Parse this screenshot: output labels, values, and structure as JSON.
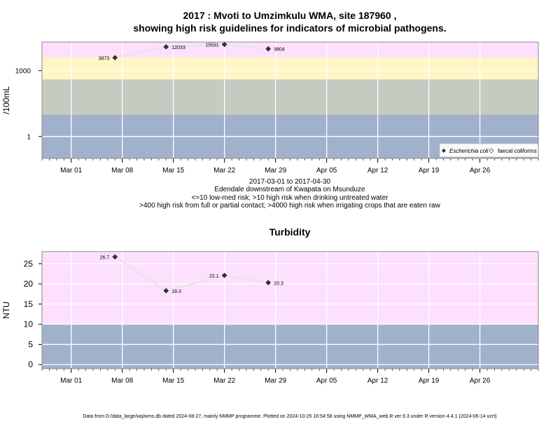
{
  "title_line1": "2017 : Mvoti to Umzimkulu WMA, site 187960 ,",
  "title_line2": "showing high risk guidelines for indicators of microbial pathogens.",
  "subtitle_lines": [
    "2017-03-01 to 2017-04-30",
    "Edendale downstream of Kwapata on Msunduze",
    "<=10 low-med risk; >10 high risk when drinking untreated water",
    ">400 high risk from full or partial contact; >4000 high risk when irrigating crops that are eaten raw"
  ],
  "footer": "Data from D:/data_large/wq/wms.db dated 2024-08-27, mainly NMMP programme. Plotted on 2024-10-25 16:54:58 using NMMP_WMA_web.R ver 9.3 under R version 4.4.1 (2024-06-14 ucrt)",
  "colors": {
    "pink": "#fde0fd",
    "yellow": "#fff6c4",
    "grey_green": "#c4ccc2",
    "blue_grey": "#a1b1cb",
    "line": "#e4e4e4",
    "marker": "#333333"
  },
  "chart_data": [
    {
      "type": "line",
      "ylabel": "/100mL",
      "log_scale": true,
      "y_tick_labels": [
        "1",
        "1000"
      ],
      "x_tick_labels": [
        "Mar 01",
        "Mar 08",
        "Mar 15",
        "Mar 22",
        "Mar 29",
        "Apr 05",
        "Apr 12",
        "Apr 19",
        "Apr 26"
      ],
      "xlim": [
        "2017-02-25",
        "2017-05-04"
      ],
      "risk_bands": [
        {
          "from": 0.1,
          "to": 10,
          "color": "#a1b1cb"
        },
        {
          "from": 10,
          "to": 400,
          "color": "#c4ccc2"
        },
        {
          "from": 400,
          "to": 4000,
          "color": "#fff6c4"
        },
        {
          "from": 4000,
          "to": 12000,
          "color": "#fde0fd"
        },
        {
          "from": 12000,
          "to": 20000,
          "color": "#fde0fd"
        }
      ],
      "legend": {
        "position": "bottom-right",
        "entries": [
          "Escherichia coli",
          "faecal coliforms"
        ]
      },
      "series": [
        {
          "name": "Escherichia coli",
          "marker": "filled-diamond",
          "points": [
            {
              "x": "2017-03-07",
              "y": 3873,
              "label": "3873"
            },
            {
              "x": "2017-03-14",
              "y": 12033,
              "label": "12033"
            },
            {
              "x": "2017-03-22",
              "y": 15531,
              "label": "15531"
            },
            {
              "x": "2017-03-28",
              "y": 9804,
              "label": "9804"
            }
          ]
        }
      ]
    },
    {
      "type": "line",
      "title": "Turbidity",
      "ylabel": "NTU",
      "ylim": [
        -1,
        28
      ],
      "y_ticks": [
        0,
        5,
        10,
        15,
        20,
        25
      ],
      "x_tick_labels": [
        "Mar 01",
        "Mar 08",
        "Mar 15",
        "Mar 22",
        "Mar 29",
        "Apr 05",
        "Apr 12",
        "Apr 19",
        "Apr 26"
      ],
      "xlim": [
        "2017-02-25",
        "2017-05-04"
      ],
      "risk_bands": [
        {
          "from": -1,
          "to": 10,
          "color": "#a1b1cb"
        },
        {
          "from": 10,
          "to": 28,
          "color": "#fde0fd"
        }
      ],
      "series": [
        {
          "marker": "filled-diamond",
          "points": [
            {
              "x": "2017-03-07",
              "y": 26.7,
              "label": "26.7"
            },
            {
              "x": "2017-03-14",
              "y": 18.3,
              "label": "18.3"
            },
            {
              "x": "2017-03-22",
              "y": 22.1,
              "label": "22.1"
            },
            {
              "x": "2017-03-28",
              "y": 20.3,
              "label": "20.3"
            }
          ]
        }
      ]
    }
  ]
}
